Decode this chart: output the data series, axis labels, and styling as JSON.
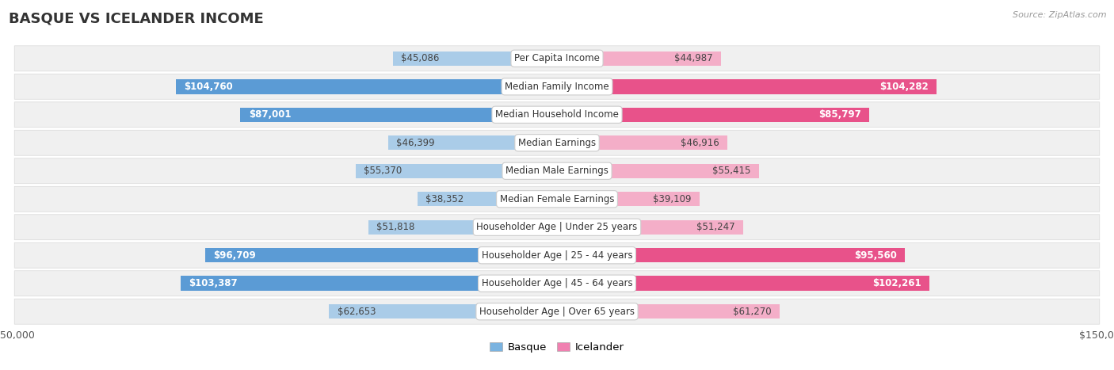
{
  "title": "BASQUE VS ICELANDER INCOME",
  "source": "Source: ZipAtlas.com",
  "categories": [
    "Per Capita Income",
    "Median Family Income",
    "Median Household Income",
    "Median Earnings",
    "Median Male Earnings",
    "Median Female Earnings",
    "Householder Age | Under 25 years",
    "Householder Age | 25 - 44 years",
    "Householder Age | 45 - 64 years",
    "Householder Age | Over 65 years"
  ],
  "basque_values": [
    45086,
    104760,
    87001,
    46399,
    55370,
    38352,
    51818,
    96709,
    103387,
    62653
  ],
  "icelander_values": [
    44987,
    104282,
    85797,
    46916,
    55415,
    39109,
    51247,
    95560,
    102261,
    61270
  ],
  "basque_labels": [
    "$45,086",
    "$104,760",
    "$87,001",
    "$46,399",
    "$55,370",
    "$38,352",
    "$51,818",
    "$96,709",
    "$103,387",
    "$62,653"
  ],
  "icelander_labels": [
    "$44,987",
    "$104,282",
    "$85,797",
    "$46,916",
    "$55,415",
    "$39,109",
    "$51,247",
    "$95,560",
    "$102,261",
    "$61,270"
  ],
  "basque_color_light": "#aacce8",
  "basque_color_dark": "#5b9bd5",
  "icelander_color_light": "#f4aec8",
  "icelander_color_dark": "#e8528a",
  "dark_threshold": 75000,
  "max_value": 150000,
  "bar_height": 0.52,
  "row_bg": "#f0f0f0",
  "row_border": "#d8d8d8",
  "label_fontsize": 8.5,
  "title_fontsize": 13,
  "category_fontsize": 8.5,
  "legend_color_basque": "#7ab3e0",
  "legend_color_icelander": "#f080b0"
}
